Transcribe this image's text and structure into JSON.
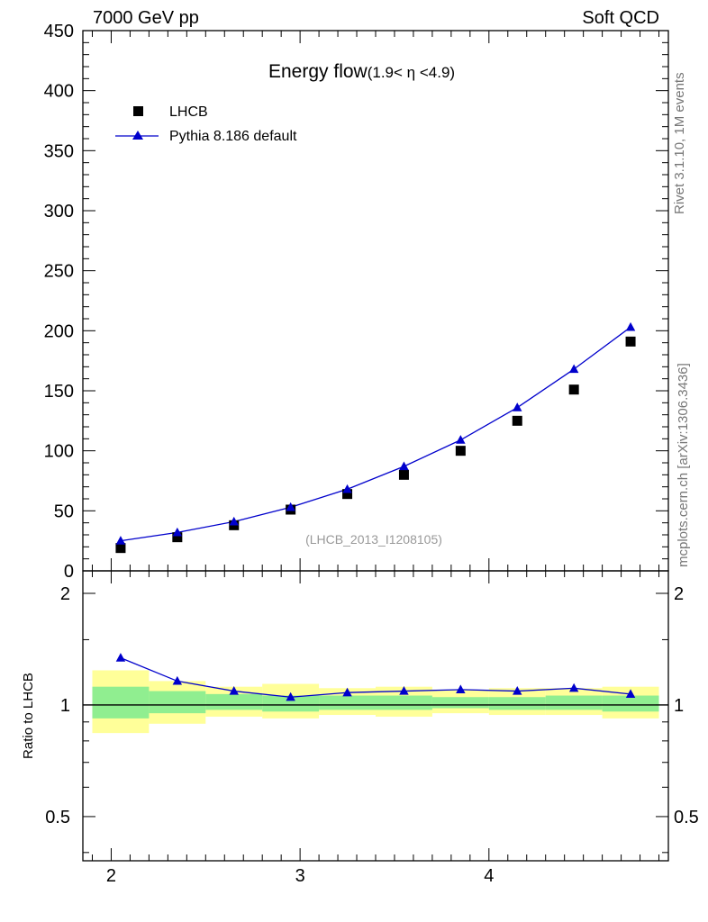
{
  "header": {
    "left": "7000 GeV pp",
    "right": "Soft QCD"
  },
  "side": {
    "rivet": "Rivet 3.1.10,  1M events",
    "mcplots": "mcplots.cern.ch [arXiv:1306.3436]"
  },
  "chart_data": {
    "type": "scatter",
    "title_main": "Energy flow",
    "title_sub": "(1.9< η <4.9)",
    "watermark": "(LHCB_2013_I1208105)",
    "xlabel": "",
    "ylabel": "",
    "xlim": [
      1.85,
      4.95
    ],
    "ylim": [
      0,
      450
    ],
    "xticks": [
      2,
      3,
      4
    ],
    "yticks": [
      0,
      50,
      100,
      150,
      200,
      250,
      300,
      350,
      400,
      450
    ],
    "legend": {
      "position": "top-left",
      "entries": [
        "LHCB",
        "Pythia 8.186 default"
      ]
    },
    "series": [
      {
        "name": "LHCB",
        "marker": "square",
        "color": "#000000",
        "x": [
          2.05,
          2.35,
          2.65,
          2.95,
          3.25,
          3.55,
          3.85,
          4.15,
          4.45,
          4.75
        ],
        "values": [
          19,
          28,
          38,
          51,
          64,
          80,
          100,
          125,
          151,
          191
        ]
      },
      {
        "name": "Pythia 8.186 default",
        "marker": "triangle",
        "color": "#0000cc",
        "x": [
          2.05,
          2.35,
          2.65,
          2.95,
          3.25,
          3.55,
          3.85,
          4.15,
          4.45,
          4.75
        ],
        "values": [
          25,
          32,
          41,
          53,
          68,
          87,
          109,
          136,
          168,
          203
        ]
      }
    ],
    "ratio": {
      "ylabel": "Ratio to LHCB",
      "ylim": [
        0.38,
        2.3
      ],
      "scale": "log",
      "yticks": [
        0.5,
        1,
        2
      ],
      "reference_line": 1,
      "bins": [
        {
          "lo": 1.9,
          "hi": 2.2,
          "inner": [
            0.92,
            1.12
          ],
          "outer": [
            0.84,
            1.24
          ]
        },
        {
          "lo": 2.2,
          "hi": 2.5,
          "inner": [
            0.95,
            1.09
          ],
          "outer": [
            0.89,
            1.16
          ]
        },
        {
          "lo": 2.5,
          "hi": 2.8,
          "inner": [
            0.97,
            1.07
          ],
          "outer": [
            0.93,
            1.12
          ]
        },
        {
          "lo": 2.8,
          "hi": 3.1,
          "inner": [
            0.96,
            1.06
          ],
          "outer": [
            0.92,
            1.14
          ]
        },
        {
          "lo": 3.1,
          "hi": 3.4,
          "inner": [
            0.97,
            1.06
          ],
          "outer": [
            0.94,
            1.11
          ]
        },
        {
          "lo": 3.4,
          "hi": 3.7,
          "inner": [
            0.97,
            1.06
          ],
          "outer": [
            0.93,
            1.12
          ]
        },
        {
          "lo": 3.7,
          "hi": 4.0,
          "inner": [
            0.98,
            1.05
          ],
          "outer": [
            0.95,
            1.1
          ]
        },
        {
          "lo": 4.0,
          "hi": 4.3,
          "inner": [
            0.97,
            1.05
          ],
          "outer": [
            0.94,
            1.11
          ]
        },
        {
          "lo": 4.3,
          "hi": 4.6,
          "inner": [
            0.97,
            1.06
          ],
          "outer": [
            0.94,
            1.11
          ]
        },
        {
          "lo": 4.6,
          "hi": 4.9,
          "inner": [
            0.96,
            1.06
          ],
          "outer": [
            0.92,
            1.12
          ]
        }
      ],
      "series": [
        {
          "name": "Pythia 8.186 default / LHCB",
          "x": [
            2.05,
            2.35,
            2.65,
            2.95,
            3.25,
            3.55,
            3.85,
            4.15,
            4.45,
            4.75
          ],
          "values": [
            1.34,
            1.16,
            1.09,
            1.05,
            1.08,
            1.09,
            1.1,
            1.09,
            1.11,
            1.07
          ]
        }
      ]
    },
    "colors": {
      "data": "#000000",
      "mc": "#0000cc",
      "band_inner": "#90ee90",
      "band_outer": "#ffff99"
    }
  }
}
